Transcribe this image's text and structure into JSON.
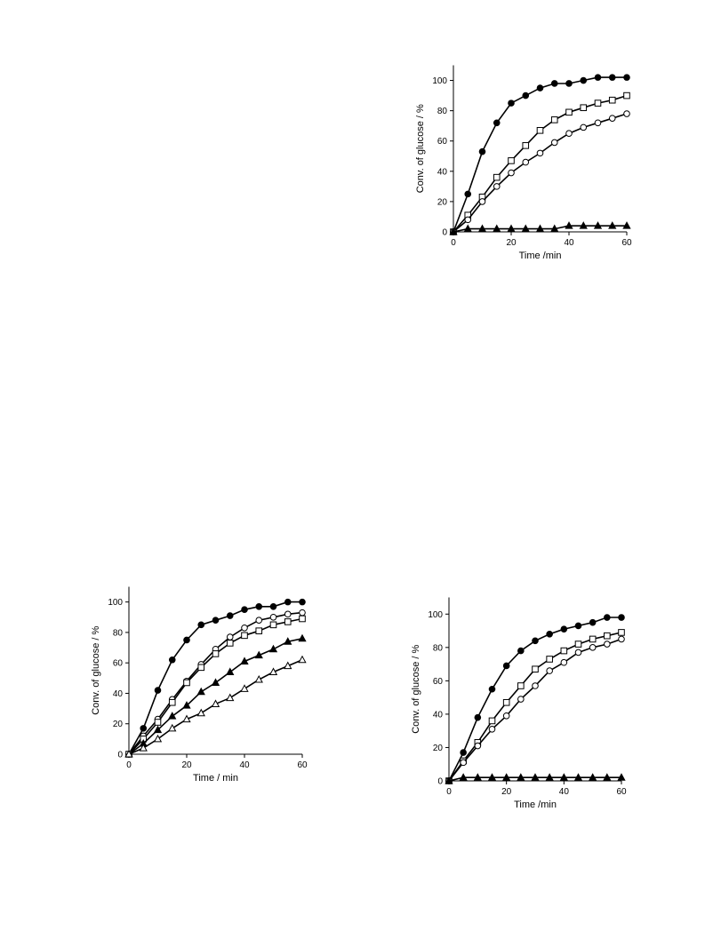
{
  "chart_data": [
    {
      "type": "line",
      "xlabel": "Time /min",
      "ylabel": "Conv. of glucose / %",
      "xlim": [
        0,
        60
      ],
      "ylim": [
        0,
        110
      ],
      "xticks": [
        0,
        20,
        40,
        60
      ],
      "yticks": [
        0,
        20,
        40,
        60,
        80,
        100
      ],
      "x": [
        0,
        5,
        10,
        15,
        20,
        25,
        30,
        35,
        40,
        45,
        50,
        55,
        60
      ],
      "series": [
        {
          "marker": "filled-circle",
          "values": [
            0,
            25,
            53,
            72,
            85,
            90,
            95,
            98,
            98,
            100,
            102,
            102,
            102
          ]
        },
        {
          "marker": "open-square",
          "values": [
            0,
            11,
            23,
            36,
            47,
            57,
            67,
            74,
            79,
            82,
            85,
            87,
            90
          ]
        },
        {
          "marker": "open-circle",
          "values": [
            0,
            8,
            20,
            30,
            39,
            46,
            52,
            59,
            65,
            69,
            72,
            75,
            78
          ]
        },
        {
          "marker": "filled-triangle",
          "values": [
            0,
            2,
            2,
            2,
            2,
            2,
            2,
            2,
            4,
            4,
            4,
            4,
            4
          ]
        }
      ]
    },
    {
      "type": "line",
      "xlabel": "Time / min",
      "ylabel": "Conv. of glucose / %",
      "xlim": [
        0,
        60
      ],
      "ylim": [
        0,
        110
      ],
      "xticks": [
        0,
        20,
        40,
        60
      ],
      "yticks": [
        0,
        20,
        40,
        60,
        80,
        100
      ],
      "x": [
        0,
        5,
        10,
        15,
        20,
        25,
        30,
        35,
        40,
        45,
        50,
        55,
        60
      ],
      "series": [
        {
          "marker": "filled-circle",
          "values": [
            0,
            17,
            42,
            62,
            75,
            85,
            88,
            91,
            95,
            97,
            97,
            100,
            100
          ]
        },
        {
          "marker": "open-circle",
          "values": [
            0,
            12,
            23,
            36,
            48,
            59,
            69,
            77,
            83,
            88,
            90,
            92,
            93
          ]
        },
        {
          "marker": "open-square",
          "values": [
            0,
            10,
            21,
            34,
            47,
            57,
            66,
            73,
            78,
            81,
            85,
            87,
            89
          ]
        },
        {
          "marker": "filled-triangle",
          "values": [
            0,
            7,
            16,
            25,
            32,
            41,
            47,
            54,
            61,
            65,
            69,
            74,
            76
          ]
        },
        {
          "marker": "open-triangle",
          "values": [
            0,
            4,
            10,
            17,
            23,
            27,
            33,
            37,
            43,
            49,
            54,
            58,
            62
          ]
        }
      ]
    },
    {
      "type": "line",
      "xlabel": "Time /min",
      "ylabel": "Conv. of glucose / %",
      "xlim": [
        0,
        60
      ],
      "ylim": [
        0,
        110
      ],
      "xticks": [
        0,
        20,
        40,
        60
      ],
      "yticks": [
        0,
        20,
        40,
        60,
        80,
        100
      ],
      "x": [
        0,
        5,
        10,
        15,
        20,
        25,
        30,
        35,
        40,
        45,
        50,
        55,
        60
      ],
      "series": [
        {
          "marker": "filled-circle",
          "values": [
            0,
            17,
            38,
            55,
            69,
            78,
            84,
            88,
            91,
            93,
            95,
            98,
            98
          ]
        },
        {
          "marker": "open-square",
          "values": [
            0,
            12,
            23,
            36,
            47,
            57,
            67,
            73,
            78,
            82,
            85,
            87,
            89
          ]
        },
        {
          "marker": "open-circle",
          "values": [
            0,
            11,
            21,
            31,
            39,
            49,
            57,
            66,
            71,
            77,
            80,
            82,
            85
          ]
        },
        {
          "marker": "filled-triangle",
          "values": [
            0,
            2,
            2,
            2,
            2,
            2,
            2,
            2,
            2,
            2,
            2,
            2,
            2
          ]
        }
      ]
    }
  ]
}
